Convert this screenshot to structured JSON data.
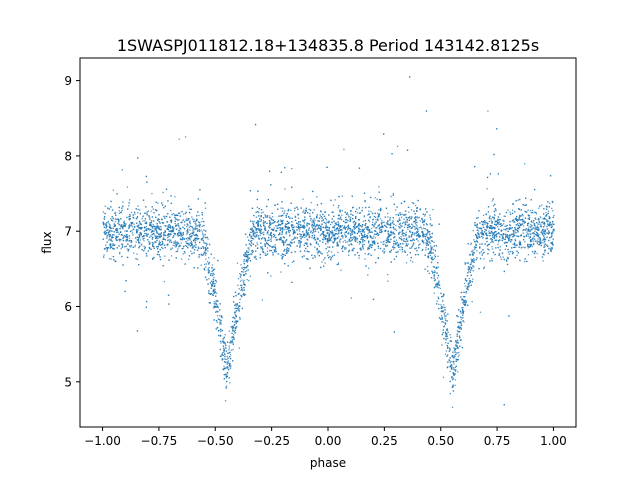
{
  "chart_data": {
    "type": "scatter",
    "title": "1SWASPJ011812.18+134835.8 Period 143142.8125s",
    "xlabel": "phase",
    "ylabel": "flux",
    "xlim": [
      -1.1,
      1.1
    ],
    "ylim": [
      4.4,
      9.3
    ],
    "xticks": [
      -1.0,
      -0.75,
      -0.5,
      -0.25,
      0.0,
      0.25,
      0.5,
      0.75,
      1.0
    ],
    "xtick_labels": [
      "−1.00",
      "−0.75",
      "−0.50",
      "−0.25",
      "0.00",
      "0.25",
      "0.50",
      "0.75",
      "1.00"
    ],
    "yticks": [
      5,
      6,
      7,
      8,
      9
    ],
    "ytick_labels": [
      "5",
      "6",
      "7",
      "8",
      "9"
    ],
    "grid": false,
    "legend": "none",
    "series_color": "#1f77b4",
    "baseline_flux": 7.0,
    "eclipses": [
      {
        "phase": -0.45,
        "min_flux": 5.1
      },
      {
        "phase": 0.55,
        "min_flux": 5.1
      }
    ],
    "sample_points": [
      [
        -1.0,
        6.95
      ],
      [
        -0.9,
        7.0
      ],
      [
        -0.75,
        6.95
      ],
      [
        -0.6,
        6.85
      ],
      [
        -0.5,
        6.2
      ],
      [
        -0.45,
        5.1
      ],
      [
        -0.4,
        6.2
      ],
      [
        -0.3,
        6.9
      ],
      [
        -0.15,
        6.95
      ],
      [
        0.0,
        6.95
      ],
      [
        0.15,
        6.95
      ],
      [
        0.3,
        6.85
      ],
      [
        0.45,
        6.3
      ],
      [
        0.55,
        5.1
      ],
      [
        0.6,
        6.2
      ],
      [
        0.7,
        6.8
      ],
      [
        0.85,
        6.95
      ],
      [
        1.0,
        6.95
      ]
    ]
  }
}
